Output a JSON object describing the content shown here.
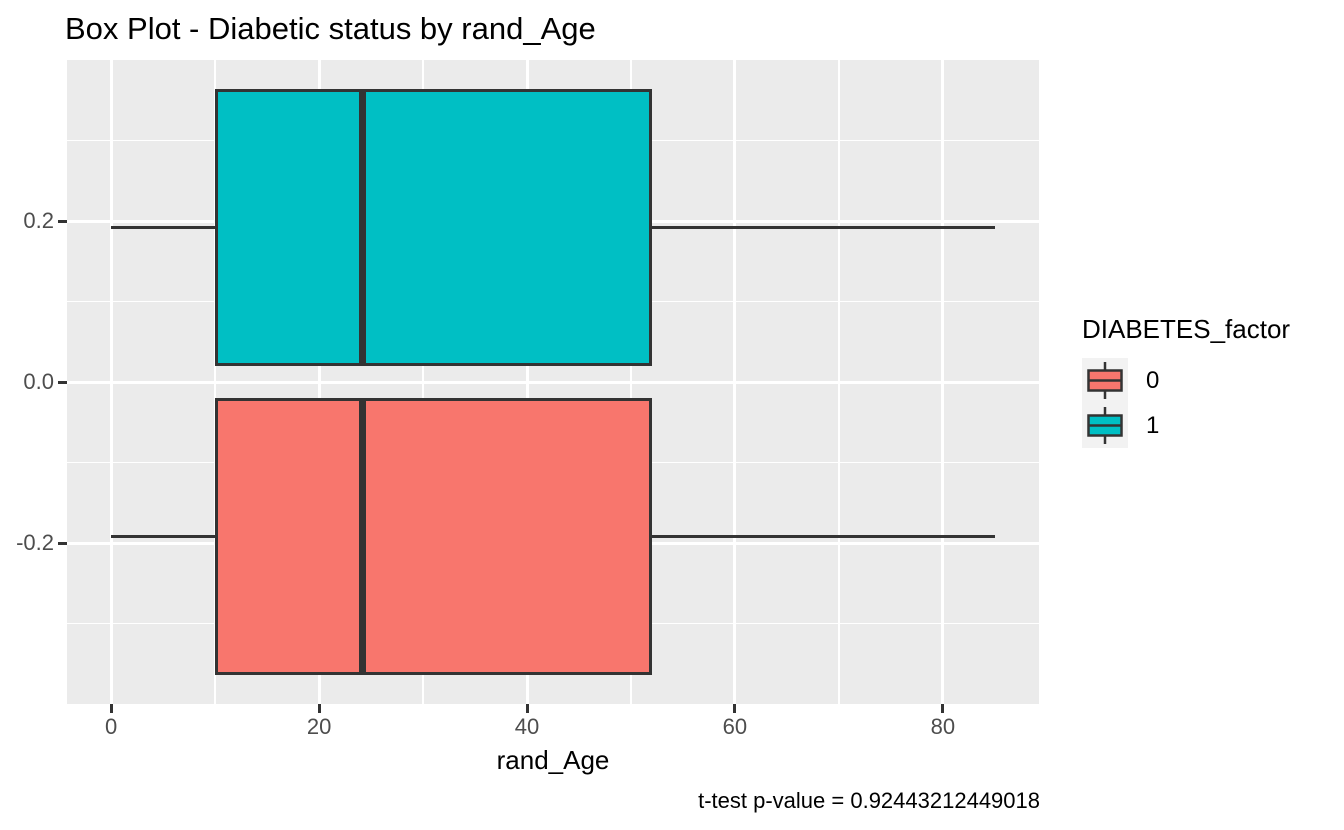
{
  "chart_data": {
    "type": "boxplot",
    "orientation": "horizontal",
    "title": "Box Plot - Diabetic status by rand_Age",
    "xlabel": "rand_Age",
    "ylabel": "",
    "caption": "t-test p-value = 0.92443212449018",
    "xlim": [
      -4.25,
      89.25
    ],
    "ylim": [
      -0.4,
      0.4
    ],
    "grid": "on",
    "legend_position": "right",
    "x_axis": {
      "major_ticks": [
        0,
        20,
        40,
        60,
        80
      ],
      "major_tick_labels": [
        "0",
        "20",
        "40",
        "60",
        "80"
      ],
      "minor_ticks": [
        10,
        30,
        50,
        70
      ]
    },
    "y_axis": {
      "major_ticks": [
        0.2,
        0.0,
        -0.2
      ],
      "major_tick_labels": [
        "0.2",
        "0.0",
        "-0.2"
      ],
      "minor_ticks": [
        0.3,
        0.1,
        -0.1,
        -0.3
      ]
    },
    "legend": {
      "title": "DIABETES_factor",
      "items": [
        {
          "label": "0",
          "color": "#F8766D"
        },
        {
          "label": "1",
          "color": "#00BFC4"
        }
      ]
    },
    "series": [
      {
        "name": "1",
        "color": "#00BFC4",
        "y_center": 0.192,
        "box_half_height": 0.1725,
        "min": 0,
        "q1": 10,
        "median": 24.2,
        "q3": 52,
        "max": 85
      },
      {
        "name": "0",
        "color": "#F8766D",
        "y_center": -0.192,
        "box_half_height": 0.1725,
        "min": 0,
        "q1": 10,
        "median": 24.2,
        "q3": 52,
        "max": 85
      }
    ],
    "colors": {
      "panel_bg": "#EBEBEB",
      "grid": "#FFFFFF",
      "box_border": "#333333",
      "median_line": "#333333",
      "tick_mark": "#333333",
      "axis_text": "#4D4D4D",
      "text": "#000000",
      "legend_key_bg": "#F2F2F2"
    }
  }
}
